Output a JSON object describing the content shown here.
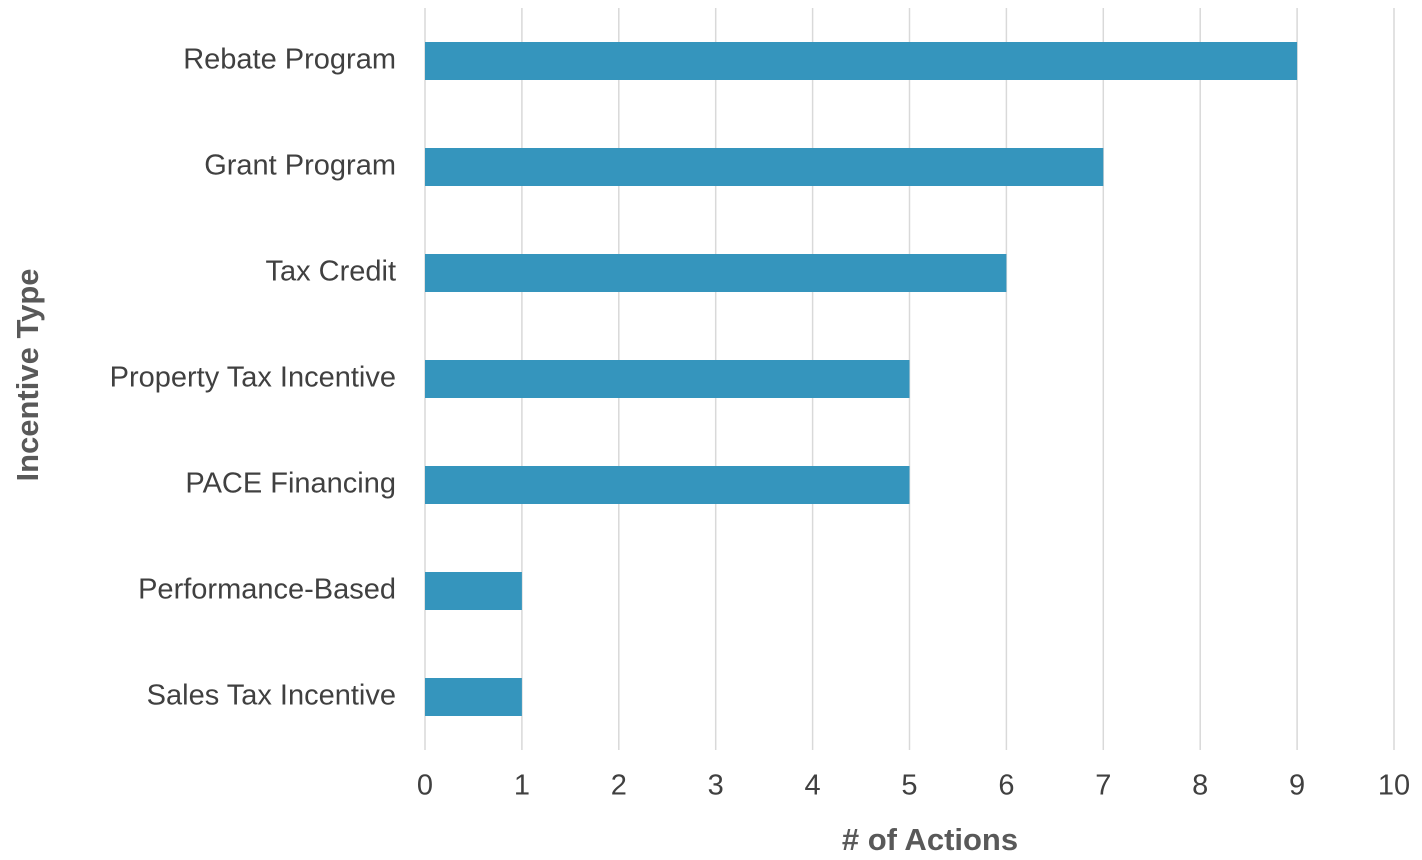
{
  "chart_data": {
    "type": "bar",
    "orientation": "horizontal",
    "xlabel": "# of Actions",
    "ylabel": "Incentive Type",
    "categories": [
      "Rebate Program",
      "Grant Program",
      "Tax Credit",
      "Property Tax Incentive",
      "PACE Financing",
      "Performance-Based",
      "Sales Tax Incentive"
    ],
    "values": [
      9,
      7,
      6,
      5,
      5,
      1,
      1
    ],
    "color": "#3595bd",
    "xlim": [
      0,
      10
    ],
    "xticks": [
      0,
      1,
      2,
      3,
      4,
      5,
      6,
      7,
      8,
      9,
      10
    ],
    "grid": true
  }
}
